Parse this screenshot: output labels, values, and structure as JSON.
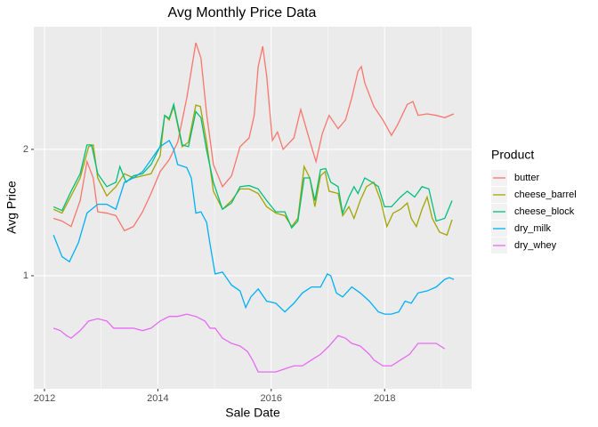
{
  "chart_data": {
    "type": "line",
    "title": "Avg Monthly Price Data",
    "x_label": "Sale Date",
    "y_label": "Avg Price",
    "legend_title": "Product",
    "y_log_scale": true,
    "grid": true,
    "legend_position": "right",
    "xlim": [
      2011.812,
      2019.535
    ],
    "xticks": [
      2012,
      2014,
      2016,
      2018
    ],
    "ylim": [
      0.538,
      3.92
    ],
    "yticks": [
      1,
      2
    ],
    "series": [
      {
        "name": "butter",
        "color": "#F8766D",
        "x": [
          2012.16,
          2012.31,
          2012.47,
          2012.63,
          2012.75,
          2012.86,
          2012.94,
          2013.1,
          2013.26,
          2013.41,
          2013.57,
          2013.73,
          2013.88,
          2014.04,
          2014.2,
          2014.35,
          2014.51,
          2014.67,
          2014.76,
          2014.86,
          2014.98,
          2015.14,
          2015.3,
          2015.45,
          2015.61,
          2015.7,
          2015.77,
          2015.85,
          2015.92,
          2016.02,
          2016.11,
          2016.21,
          2016.4,
          2016.52,
          2016.71,
          2016.79,
          2016.9,
          2017.02,
          2017.18,
          2017.31,
          2017.42,
          2017.53,
          2017.59,
          2017.65,
          2017.81,
          2017.97,
          2018.12,
          2018.23,
          2018.4,
          2018.5,
          2018.59,
          2018.75,
          2018.91,
          2019.06,
          2019.22
        ],
        "values": [
          1.37,
          1.35,
          1.31,
          1.51,
          1.87,
          1.71,
          1.42,
          1.41,
          1.39,
          1.28,
          1.31,
          1.42,
          1.57,
          1.77,
          1.89,
          2.08,
          2.65,
          3.59,
          3.3,
          2.43,
          1.84,
          1.63,
          1.73,
          2.03,
          2.13,
          2.41,
          3.15,
          3.52,
          2.99,
          2.1,
          2.2,
          2.0,
          2.13,
          2.49,
          2.03,
          1.87,
          2.18,
          2.41,
          2.24,
          2.35,
          2.65,
          3.07,
          3.15,
          2.88,
          2.53,
          2.35,
          2.16,
          2.29,
          2.56,
          2.6,
          2.41,
          2.43,
          2.41,
          2.38,
          2.43
        ]
      },
      {
        "name": "cheese_barrel",
        "color": "#A3A500",
        "x": [
          2012.16,
          2012.31,
          2012.47,
          2012.63,
          2012.78,
          2012.86,
          2012.94,
          2013.1,
          2013.26,
          2013.41,
          2013.57,
          2013.73,
          2013.88,
          2014.04,
          2014.12,
          2014.2,
          2014.28,
          2014.43,
          2014.54,
          2014.67,
          2014.75,
          2014.86,
          2014.98,
          2015.14,
          2015.3,
          2015.45,
          2015.61,
          2015.77,
          2015.92,
          2016.08,
          2016.24,
          2016.36,
          2016.47,
          2016.58,
          2016.68,
          2016.77,
          2016.87,
          2016.95,
          2017.02,
          2017.18,
          2017.26,
          2017.37,
          2017.46,
          2017.57,
          2017.68,
          2017.81,
          2017.93,
          2018.04,
          2018.15,
          2018.28,
          2018.4,
          2018.47,
          2018.56,
          2018.66,
          2018.75,
          2018.84,
          2018.97,
          2019.1,
          2019.19
        ],
        "values": [
          1.44,
          1.41,
          1.55,
          1.71,
          2.03,
          2.05,
          1.71,
          1.55,
          1.63,
          1.75,
          1.71,
          1.73,
          1.75,
          1.93,
          2.41,
          2.35,
          2.53,
          2.03,
          2.08,
          2.55,
          2.53,
          2.08,
          1.59,
          1.44,
          1.51,
          1.61,
          1.61,
          1.57,
          1.46,
          1.41,
          1.39,
          1.31,
          1.37,
          1.82,
          1.71,
          1.46,
          1.73,
          1.77,
          1.59,
          1.57,
          1.39,
          1.46,
          1.37,
          1.51,
          1.63,
          1.67,
          1.51,
          1.31,
          1.41,
          1.44,
          1.49,
          1.37,
          1.31,
          1.44,
          1.54,
          1.37,
          1.27,
          1.25,
          1.36
        ]
      },
      {
        "name": "cheese_block",
        "color": "#00BF7D",
        "x": [
          2012.16,
          2012.31,
          2012.47,
          2012.63,
          2012.75,
          2012.83,
          2012.94,
          2013.1,
          2013.26,
          2013.33,
          2013.44,
          2013.57,
          2013.73,
          2013.88,
          2014.04,
          2014.12,
          2014.2,
          2014.28,
          2014.43,
          2014.54,
          2014.67,
          2014.76,
          2014.86,
          2014.98,
          2015.14,
          2015.3,
          2015.45,
          2015.61,
          2015.77,
          2015.92,
          2016.08,
          2016.24,
          2016.36,
          2016.47,
          2016.58,
          2016.68,
          2016.77,
          2016.87,
          2016.96,
          2017.05,
          2017.18,
          2017.26,
          2017.37,
          2017.46,
          2017.53,
          2017.65,
          2017.78,
          2017.89,
          2018.0,
          2018.12,
          2018.28,
          2018.4,
          2018.53,
          2018.66,
          2018.78,
          2018.91,
          2019.06,
          2019.19
        ],
        "values": [
          1.46,
          1.43,
          1.59,
          1.75,
          2.05,
          2.05,
          1.75,
          1.63,
          1.67,
          1.82,
          1.67,
          1.73,
          1.75,
          1.84,
          2.03,
          2.41,
          2.37,
          2.56,
          2.05,
          2.03,
          2.46,
          2.38,
          1.99,
          1.67,
          1.44,
          1.49,
          1.63,
          1.64,
          1.61,
          1.51,
          1.42,
          1.42,
          1.3,
          1.35,
          1.71,
          1.71,
          1.51,
          1.79,
          1.8,
          1.67,
          1.63,
          1.41,
          1.54,
          1.63,
          1.57,
          1.71,
          1.67,
          1.63,
          1.46,
          1.46,
          1.54,
          1.59,
          1.54,
          1.63,
          1.61,
          1.35,
          1.37,
          1.51
        ]
      },
      {
        "name": "dry_milk",
        "color": "#00B0F6",
        "x": [
          2012.16,
          2012.31,
          2012.44,
          2012.6,
          2012.75,
          2012.94,
          2013.1,
          2013.26,
          2013.41,
          2013.57,
          2013.73,
          2013.88,
          2014.04,
          2014.2,
          2014.28,
          2014.35,
          2014.51,
          2014.59,
          2014.67,
          2014.76,
          2014.86,
          2014.92,
          2015.01,
          2015.14,
          2015.3,
          2015.45,
          2015.55,
          2015.64,
          2015.77,
          2015.92,
          2016.08,
          2016.24,
          2016.4,
          2016.55,
          2016.71,
          2016.87,
          2016.99,
          2017.05,
          2017.15,
          2017.26,
          2017.42,
          2017.57,
          2017.73,
          2017.89,
          2018.0,
          2018.12,
          2018.25,
          2018.36,
          2018.47,
          2018.59,
          2018.75,
          2018.91,
          2019.06,
          2019.14,
          2019.22
        ],
        "values": [
          1.25,
          1.11,
          1.08,
          1.2,
          1.41,
          1.48,
          1.48,
          1.44,
          1.67,
          1.71,
          1.77,
          1.89,
          2.03,
          2.1,
          2.0,
          1.84,
          1.81,
          1.71,
          1.41,
          1.42,
          1.34,
          1.19,
          1.01,
          1.02,
          0.95,
          0.92,
          0.84,
          0.89,
          0.93,
          0.87,
          0.86,
          0.82,
          0.86,
          0.91,
          0.94,
          0.94,
          1.01,
          1.0,
          0.91,
          0.89,
          0.94,
          0.91,
          0.87,
          0.82,
          0.81,
          0.81,
          0.82,
          0.87,
          0.86,
          0.91,
          0.92,
          0.94,
          0.98,
          0.99,
          0.98
        ]
      },
      {
        "name": "dry_whey",
        "color": "#E76BF3",
        "x": [
          2012.16,
          2012.28,
          2012.39,
          2012.47,
          2012.63,
          2012.78,
          2012.94,
          2013.1,
          2013.22,
          2013.41,
          2013.57,
          2013.73,
          2013.88,
          2014.04,
          2014.2,
          2014.35,
          2014.51,
          2014.67,
          2014.83,
          2014.92,
          2015.01,
          2015.14,
          2015.3,
          2015.45,
          2015.58,
          2015.67,
          2015.77,
          2015.92,
          2016.08,
          2016.24,
          2016.4,
          2016.55,
          2016.71,
          2016.87,
          2017.02,
          2017.18,
          2017.31,
          2017.42,
          2017.57,
          2017.73,
          2017.81,
          2017.97,
          2018.12,
          2018.28,
          2018.44,
          2018.59,
          2018.75,
          2018.91,
          2019.06
        ],
        "values": [
          0.75,
          0.74,
          0.72,
          0.71,
          0.74,
          0.78,
          0.79,
          0.78,
          0.75,
          0.75,
          0.75,
          0.74,
          0.75,
          0.78,
          0.8,
          0.8,
          0.81,
          0.8,
          0.78,
          0.75,
          0.75,
          0.71,
          0.69,
          0.68,
          0.66,
          0.63,
          0.59,
          0.59,
          0.59,
          0.6,
          0.61,
          0.61,
          0.63,
          0.65,
          0.68,
          0.72,
          0.71,
          0.69,
          0.68,
          0.65,
          0.63,
          0.61,
          0.61,
          0.63,
          0.65,
          0.69,
          0.69,
          0.69,
          0.67
        ]
      }
    ]
  }
}
